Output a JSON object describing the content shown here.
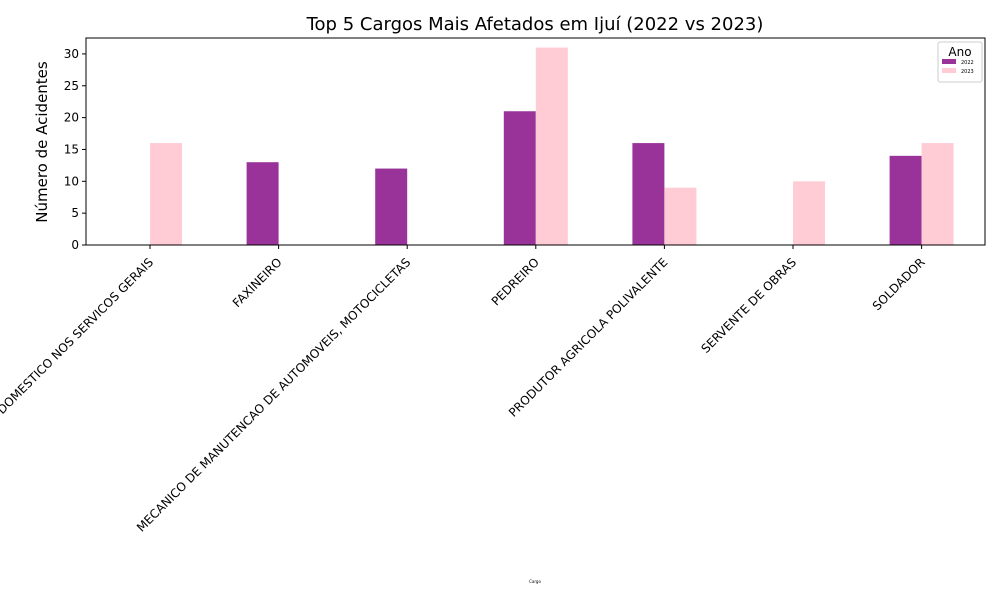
{
  "chart_data": {
    "type": "bar",
    "title": "Top 5 Cargos Mais Afetados em Ijuí (2022 vs 2023)",
    "xlabel": "Cargo",
    "ylabel": "Número de Acidentes",
    "ylim": [
      0,
      32.5
    ],
    "yticks": [
      0,
      5,
      10,
      15,
      20,
      25,
      30
    ],
    "grid": false,
    "legend": {
      "title": "Ano",
      "placement": "top-right"
    },
    "categories": [
      "EMPREGADO DOMESTICO NOS SERVICOS GERAIS",
      "FAXINEIRO",
      "MECANICO DE MANUTENCAO DE AUTOMOVEIS, MOTOCICLETAS",
      "PEDREIRO",
      "PRODUTOR AGRICOLA POLIVALENTE",
      "SERVENTE DE OBRAS",
      "SOLDADOR"
    ],
    "series": [
      {
        "name": "2022",
        "color": "#993399",
        "values": [
          0,
          13,
          12,
          21,
          16,
          0,
          14
        ]
      },
      {
        "name": "2023",
        "color": "#ffccd5",
        "values": [
          16,
          0,
          0,
          31,
          9,
          10,
          16
        ]
      }
    ]
  }
}
